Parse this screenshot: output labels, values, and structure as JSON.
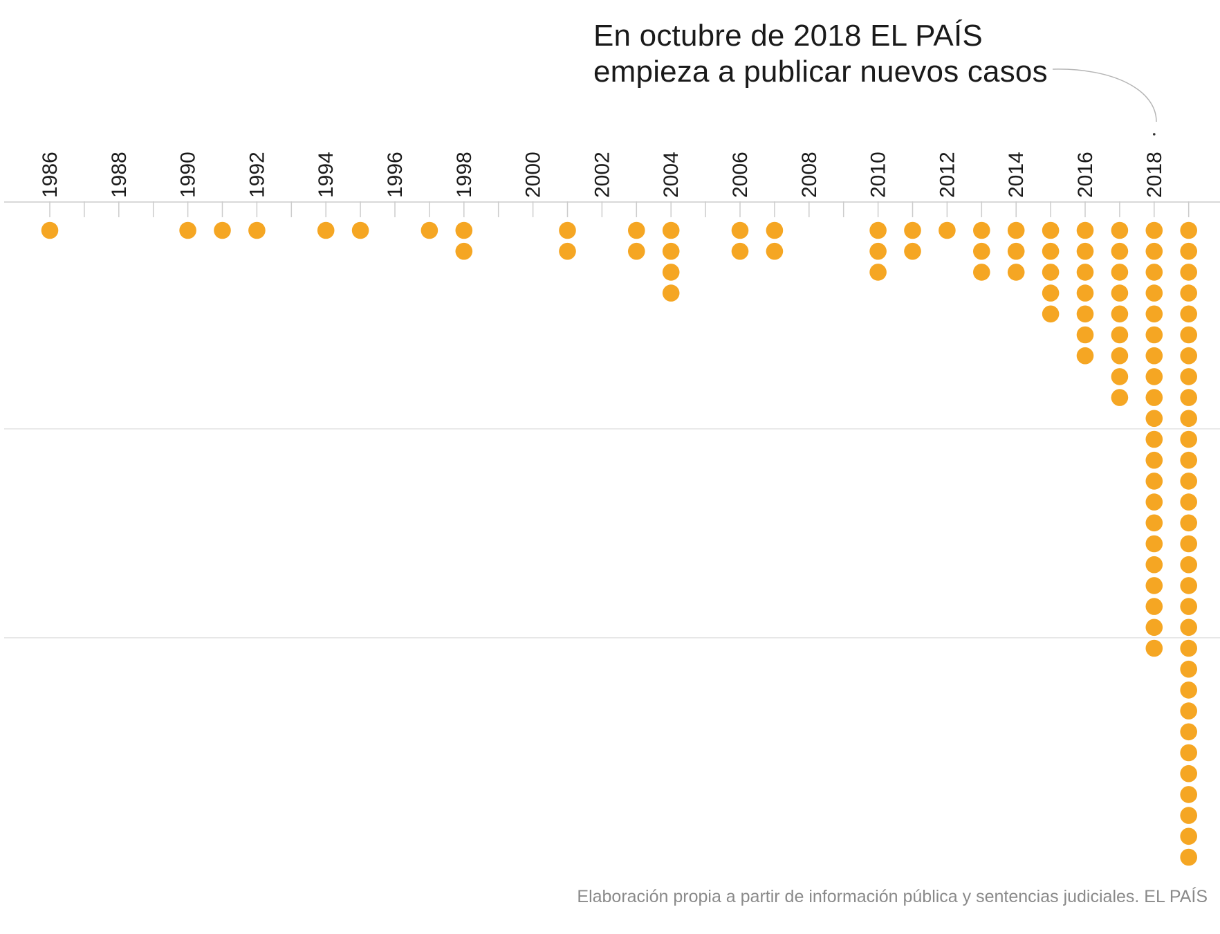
{
  "chart_data": {
    "type": "dot-timeline",
    "title": "",
    "annotation": {
      "line1": "En octubre de 2018 EL PAÍS",
      "line2": "empieza a publicar nuevos casos",
      "points_to": 2018
    },
    "source": "Elaboración propia a partir de información pública y sentencias judiciales. EL PAÍS",
    "colors": {
      "dot": "#F5A623",
      "axis": "#cccccc",
      "grid": "#e3e3e3",
      "label": "#1a1a1a",
      "connector": "#b5b5b5"
    },
    "x_range": [
      1986,
      2019
    ],
    "tick_labels": [
      "1986",
      "1988",
      "1990",
      "1992",
      "1994",
      "1996",
      "1998",
      "2000",
      "2002",
      "2004",
      "2006",
      "2008",
      "2010",
      "2012",
      "2014",
      "2016",
      "2018"
    ],
    "gridlines_at_count": [
      10,
      20
    ],
    "years": [
      1986,
      1990,
      1991,
      1992,
      1994,
      1995,
      1997,
      1998,
      2001,
      2003,
      2004,
      2006,
      2007,
      2010,
      2011,
      2012,
      2013,
      2014,
      2015,
      2016,
      2017,
      2018,
      2019
    ],
    "counts": [
      1,
      1,
      1,
      1,
      1,
      1,
      1,
      2,
      2,
      2,
      4,
      2,
      2,
      3,
      2,
      1,
      3,
      3,
      5,
      7,
      9,
      21,
      31
    ]
  }
}
